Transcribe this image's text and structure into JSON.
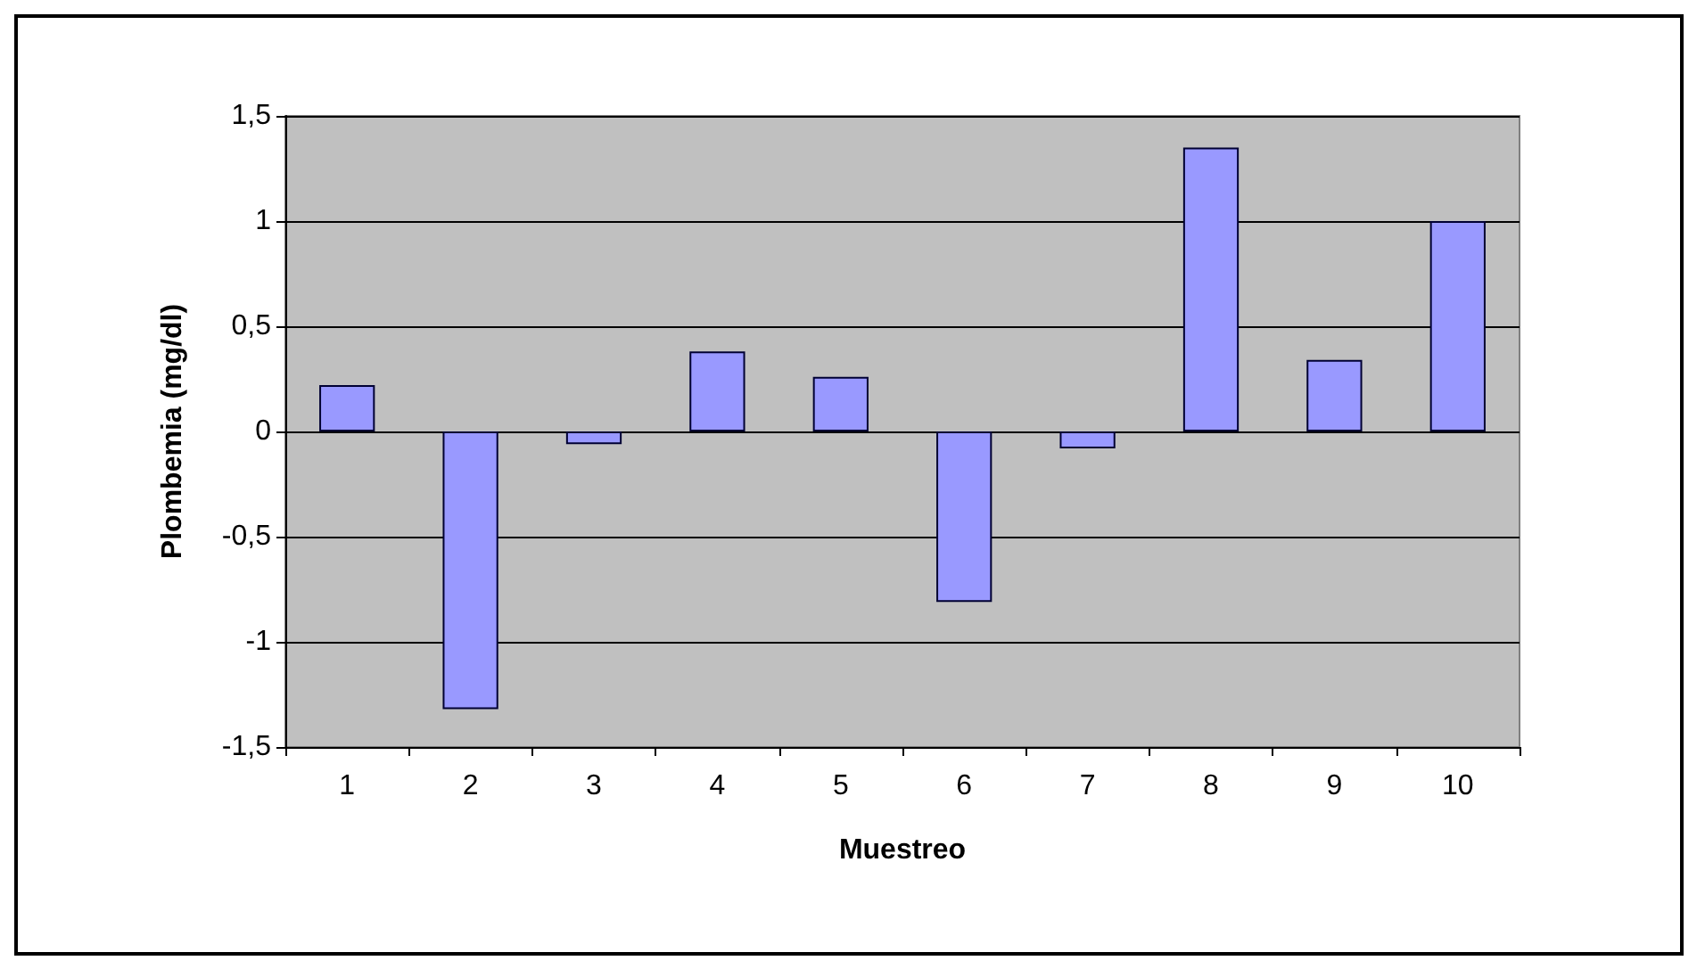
{
  "chart_data": {
    "type": "bar",
    "xlabel": "Muestreo",
    "ylabel": "Plombemia (mg/dl)",
    "categories": [
      "1",
      "2",
      "3",
      "4",
      "5",
      "6",
      "7",
      "8",
      "9",
      "10"
    ],
    "values": [
      0.22,
      -1.32,
      -0.06,
      0.38,
      0.26,
      -0.81,
      -0.08,
      1.35,
      0.34,
      1.0
    ],
    "color": "#9999ff",
    "ylim": [
      -1.5,
      1.5
    ],
    "yticks": [
      {
        "value": -1.5,
        "label": "-1,5"
      },
      {
        "value": -1,
        "label": "-1"
      },
      {
        "value": -0.5,
        "label": "-0,5"
      },
      {
        "value": 0,
        "label": "0"
      },
      {
        "value": 0.5,
        "label": "0,5"
      },
      {
        "value": 1,
        "label": "1"
      },
      {
        "value": 1.5,
        "label": "1,5"
      }
    ],
    "grid": "y"
  }
}
